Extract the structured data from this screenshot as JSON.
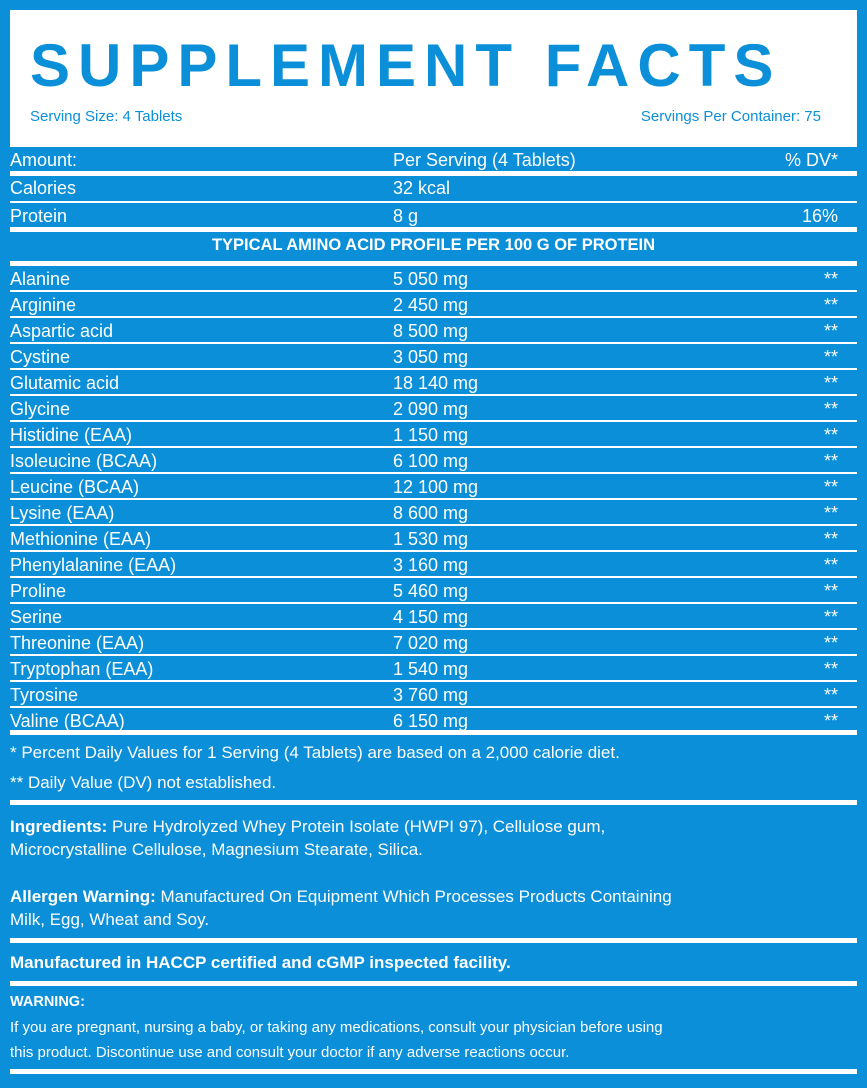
{
  "title": "SUPPLEMENT FACTS",
  "serving_size": "Serving Size: 4 Tablets",
  "servings_per_container": "Servings Per Container: 75",
  "header": {
    "name": "Amount:",
    "amount": "Per Serving (4 Tablets)",
    "dv": "% DV*"
  },
  "nutrients": [
    {
      "name": "Calories",
      "amount": "32 kcal",
      "dv": ""
    },
    {
      "name": "Protein",
      "amount": "8 g",
      "dv": "16%"
    }
  ],
  "profile_title": "TYPICAL AMINO ACID PROFILE PER 100 G OF PROTEIN",
  "amino_acids": [
    {
      "name": "Alanine",
      "amount": "5 050 mg",
      "dv": "**"
    },
    {
      "name": "Arginine",
      "amount": "2 450 mg",
      "dv": "**"
    },
    {
      "name": "Aspartic acid",
      "amount": "8 500 mg",
      "dv": "**"
    },
    {
      "name": "Cystine",
      "amount": "3 050 mg",
      "dv": "**"
    },
    {
      "name": "Glutamic acid",
      "amount": "18 140 mg",
      "dv": "**"
    },
    {
      "name": "Glycine",
      "amount": "2 090 mg",
      "dv": "**"
    },
    {
      "name": "Histidine (EAA)",
      "amount": "1 150 mg",
      "dv": "**"
    },
    {
      "name": "Isoleucine (BCAA)",
      "amount": "6 100 mg",
      "dv": "**"
    },
    {
      "name": "Leucine (BCAA)",
      "amount": "12 100 mg",
      "dv": "**"
    },
    {
      "name": "Lysine (EAA)",
      "amount": "8 600 mg",
      "dv": "**"
    },
    {
      "name": "Methionine (EAA)",
      "amount": "1 530 mg",
      "dv": "**"
    },
    {
      "name": "Phenylalanine (EAA)",
      "amount": "3 160 mg",
      "dv": "**"
    },
    {
      "name": "Proline",
      "amount": "5 460 mg",
      "dv": "**"
    },
    {
      "name": "Serine",
      "amount": "4 150 mg",
      "dv": "**"
    },
    {
      "name": "Threonine (EAA)",
      "amount": "7 020 mg",
      "dv": "**"
    },
    {
      "name": "Tryptophan (EAA)",
      "amount": "1 540 mg",
      "dv": "**"
    },
    {
      "name": "Tyrosine",
      "amount": "3 760 mg",
      "dv": "**"
    },
    {
      "name": "Valine (BCAA)",
      "amount": "6 150 mg",
      "dv": "**"
    }
  ],
  "footnote1": "* Percent Daily Values for 1 Serving (4 Tablets) are based on a 2,000 calorie diet.",
  "footnote2": "** Daily Value (DV) not established.",
  "ingredients_label": "Ingredients:",
  "ingredients_line1": " Pure Hydrolyzed Whey Protein Isolate (HWPI 97), Cellulose gum,",
  "ingredients_line2": "Microcrystalline Cellulose, Magnesium Stearate, Silica.",
  "allergen_label": "Allergen Warning:",
  "allergen_line1": "Manufactured On Equipment Which Processes Products Containing",
  "allergen_line2": "Milk, Egg, Wheat and Soy.",
  "facility": "Manufactured in HACCP certified and cGMP inspected facility.",
  "warning_label": "WARNING:",
  "warning_line1": "If you are pregnant, nursing a baby, or taking any medications, consult your physician before using",
  "warning_line2": "this product. Discontinue use and consult your doctor if any adverse reactions occur."
}
